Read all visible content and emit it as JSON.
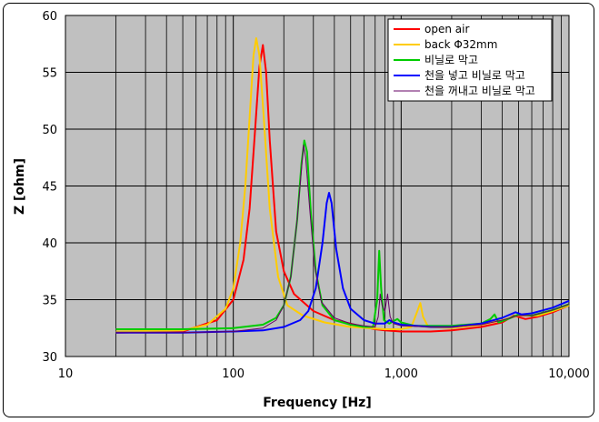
{
  "chart_data": {
    "type": "line",
    "title": "",
    "xlabel": "Frequency [Hz]",
    "ylabel": "Z [ohm]",
    "xscale": "log",
    "xlim": [
      10,
      10000
    ],
    "ylim": [
      30,
      60
    ],
    "x_ticks": [
      10,
      100,
      1000,
      10000
    ],
    "x_tick_labels": [
      "10",
      "100",
      "1,000",
      "10,000"
    ],
    "y_ticks": [
      30,
      35,
      40,
      45,
      50,
      55,
      60
    ],
    "y_tick_labels": [
      "30",
      "35",
      "40",
      "45",
      "50",
      "55",
      "60"
    ],
    "grid": true,
    "legend_position": "top-right",
    "series": [
      {
        "name": "open air",
        "color": "#ff0000",
        "points": [
          [
            20,
            32.1
          ],
          [
            50,
            32.2
          ],
          [
            80,
            33.2
          ],
          [
            100,
            35.0
          ],
          [
            115,
            38.5
          ],
          [
            125,
            43.0
          ],
          [
            135,
            50.0
          ],
          [
            143,
            55.5
          ],
          [
            150,
            57.4
          ],
          [
            157,
            55.0
          ],
          [
            165,
            49.0
          ],
          [
            180,
            41.0
          ],
          [
            200,
            37.5
          ],
          [
            230,
            35.5
          ],
          [
            300,
            34.0
          ],
          [
            400,
            33.2
          ],
          [
            500,
            32.9
          ],
          [
            600,
            32.6
          ],
          [
            700,
            32.4
          ],
          [
            800,
            32.3
          ],
          [
            1000,
            32.2
          ],
          [
            1500,
            32.2
          ],
          [
            2000,
            32.3
          ],
          [
            3000,
            32.6
          ],
          [
            4000,
            33.0
          ],
          [
            4700,
            33.6
          ],
          [
            5500,
            33.3
          ],
          [
            6500,
            33.5
          ],
          [
            8000,
            33.9
          ],
          [
            10000,
            34.5
          ]
        ]
      },
      {
        "name": "back Φ32mm",
        "color": "#ffcc00",
        "points": [
          [
            20,
            32.2
          ],
          [
            50,
            32.3
          ],
          [
            70,
            32.8
          ],
          [
            90,
            34.2
          ],
          [
            100,
            36.0
          ],
          [
            110,
            40.0
          ],
          [
            118,
            45.0
          ],
          [
            125,
            51.0
          ],
          [
            132,
            56.5
          ],
          [
            137,
            58.0
          ],
          [
            143,
            56.5
          ],
          [
            152,
            51.0
          ],
          [
            165,
            43.0
          ],
          [
            185,
            37.0
          ],
          [
            210,
            34.5
          ],
          [
            260,
            33.6
          ],
          [
            350,
            33.0
          ],
          [
            500,
            32.6
          ],
          [
            800,
            32.4
          ],
          [
            1000,
            32.4
          ],
          [
            1150,
            32.6
          ],
          [
            1250,
            34.0
          ],
          [
            1300,
            34.7
          ],
          [
            1350,
            33.5
          ],
          [
            1450,
            32.6
          ],
          [
            2000,
            32.5
          ],
          [
            3000,
            32.8
          ],
          [
            4000,
            33.2
          ],
          [
            5000,
            33.6
          ],
          [
            6500,
            33.6
          ],
          [
            8000,
            34.0
          ],
          [
            10000,
            34.5
          ]
        ]
      },
      {
        "name": "비닐로 막고",
        "color": "#00cc00",
        "points": [
          [
            20,
            32.4
          ],
          [
            50,
            32.4
          ],
          [
            100,
            32.5
          ],
          [
            150,
            32.8
          ],
          [
            180,
            33.4
          ],
          [
            200,
            34.5
          ],
          [
            220,
            37.0
          ],
          [
            240,
            42.0
          ],
          [
            255,
            47.0
          ],
          [
            265,
            49.0
          ],
          [
            275,
            48.0
          ],
          [
            290,
            42.5
          ],
          [
            310,
            37.5
          ],
          [
            340,
            34.5
          ],
          [
            400,
            33.2
          ],
          [
            500,
            32.8
          ],
          [
            600,
            32.6
          ],
          [
            680,
            32.6
          ],
          [
            720,
            35.0
          ],
          [
            740,
            39.3
          ],
          [
            760,
            36.0
          ],
          [
            790,
            33.2
          ],
          [
            850,
            32.9
          ],
          [
            950,
            33.3
          ],
          [
            1000,
            33.0
          ],
          [
            1200,
            32.7
          ],
          [
            2000,
            32.7
          ],
          [
            3000,
            32.9
          ],
          [
            3400,
            33.3
          ],
          [
            3600,
            33.7
          ],
          [
            3800,
            33.0
          ],
          [
            4500,
            33.4
          ],
          [
            5000,
            33.7
          ],
          [
            6000,
            33.6
          ],
          [
            8000,
            34.1
          ],
          [
            10000,
            34.6
          ]
        ]
      },
      {
        "name": "천을 넣고 비닐로 막고",
        "color": "#0000ff",
        "points": [
          [
            20,
            32.1
          ],
          [
            50,
            32.1
          ],
          [
            100,
            32.2
          ],
          [
            150,
            32.3
          ],
          [
            200,
            32.6
          ],
          [
            250,
            33.2
          ],
          [
            280,
            34.0
          ],
          [
            310,
            36.0
          ],
          [
            340,
            40.0
          ],
          [
            360,
            43.5
          ],
          [
            372,
            44.4
          ],
          [
            385,
            43.5
          ],
          [
            410,
            39.5
          ],
          [
            450,
            36.0
          ],
          [
            500,
            34.2
          ],
          [
            600,
            33.2
          ],
          [
            700,
            32.9
          ],
          [
            800,
            32.9
          ],
          [
            850,
            33.2
          ],
          [
            900,
            33.0
          ],
          [
            1000,
            32.8
          ],
          [
            1500,
            32.6
          ],
          [
            2000,
            32.6
          ],
          [
            3000,
            32.9
          ],
          [
            4000,
            33.4
          ],
          [
            4800,
            33.9
          ],
          [
            5200,
            33.7
          ],
          [
            6000,
            33.8
          ],
          [
            8000,
            34.3
          ],
          [
            10000,
            34.9
          ]
        ]
      },
      {
        "name": "천을 꺼내고 비닐로 막고",
        "color": "#660066",
        "points": [
          [
            20,
            32.1
          ],
          [
            50,
            32.1
          ],
          [
            100,
            32.2
          ],
          [
            150,
            32.5
          ],
          [
            180,
            33.2
          ],
          [
            200,
            34.5
          ],
          [
            220,
            37.0
          ],
          [
            240,
            42.0
          ],
          [
            255,
            46.5
          ],
          [
            262,
            48.6
          ],
          [
            270,
            47.5
          ],
          [
            285,
            43.0
          ],
          [
            305,
            38.0
          ],
          [
            335,
            34.8
          ],
          [
            400,
            33.4
          ],
          [
            500,
            32.9
          ],
          [
            600,
            32.7
          ],
          [
            700,
            32.6
          ],
          [
            730,
            33.5
          ],
          [
            750,
            35.5
          ],
          [
            770,
            34.5
          ],
          [
            800,
            34.0
          ],
          [
            830,
            35.5
          ],
          [
            860,
            33.5
          ],
          [
            900,
            32.9
          ],
          [
            1000,
            32.7
          ],
          [
            1500,
            32.6
          ],
          [
            2000,
            32.6
          ],
          [
            3000,
            32.8
          ],
          [
            4000,
            33.2
          ],
          [
            5000,
            33.6
          ],
          [
            6000,
            33.6
          ],
          [
            8000,
            34.1
          ],
          [
            10000,
            34.6
          ]
        ]
      }
    ]
  }
}
